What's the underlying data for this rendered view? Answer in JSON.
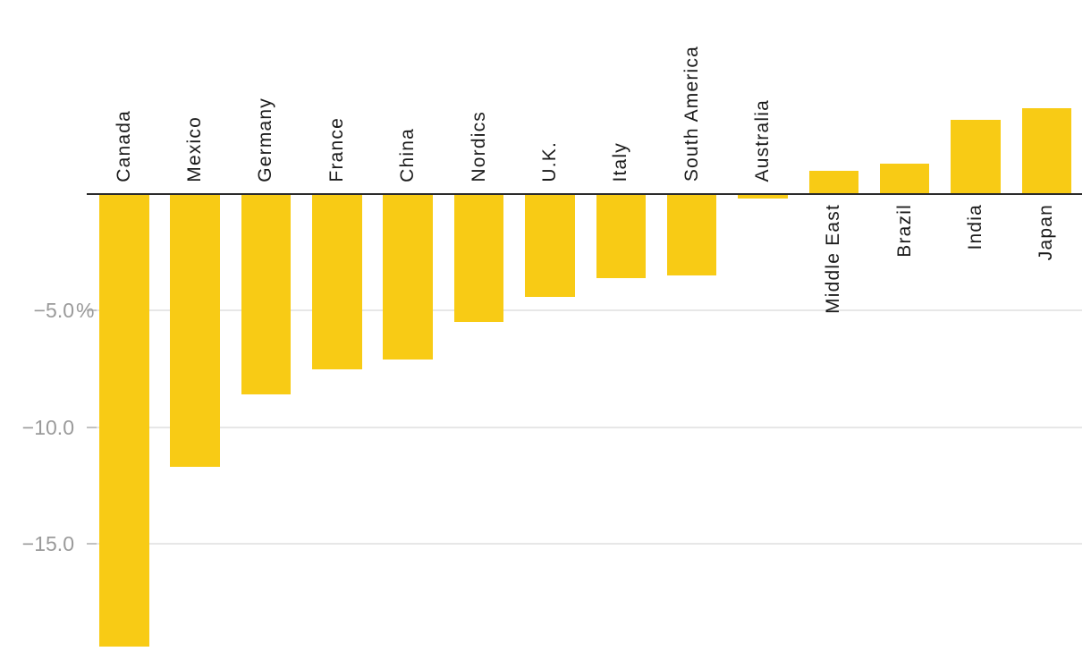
{
  "chart_data": {
    "type": "bar",
    "title": "",
    "xlabel": "",
    "ylabel": "",
    "value_unit": "%",
    "legend": "none",
    "grid": "horizontal",
    "ylim": [
      -19.6,
      3.9
    ],
    "categories": [
      "Canada",
      "Mexico",
      "Germany",
      "France",
      "China",
      "Nordics",
      "U.K.",
      "Italy",
      "South America",
      "Australia",
      "Middle East",
      "Brazil",
      "India",
      "Japan"
    ],
    "values": [
      -19.4,
      -11.7,
      -8.6,
      -7.5,
      -7.1,
      -5.5,
      -4.4,
      -3.6,
      -3.5,
      -0.2,
      1.0,
      1.3,
      3.2,
      3.7
    ],
    "y_ticks": [
      {
        "value": -5,
        "label": "−5.0",
        "suffix": "%"
      },
      {
        "value": -10,
        "label": "−10.0",
        "suffix": ""
      },
      {
        "value": -15,
        "label": "−15.0",
        "suffix": ""
      }
    ],
    "colors": {
      "bar": "#F8CB15",
      "baseline": "#2B2B2B",
      "gridline": "#E7E7E7",
      "tick_mark": "#C2C2C2",
      "tick_label": "#9A9A9A",
      "category_label": "#1A1A1A",
      "background": "#FFFFFF"
    }
  }
}
